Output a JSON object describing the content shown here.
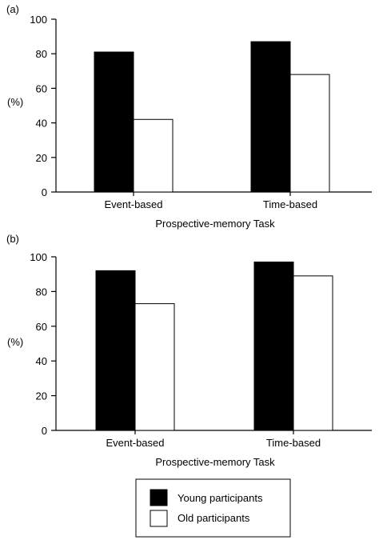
{
  "chart_data": [
    {
      "type": "bar",
      "panel_label": "(a)",
      "categories": [
        "Event-based",
        "Time-based"
      ],
      "series": [
        {
          "name": "Young participants",
          "values": [
            81,
            87
          ]
        },
        {
          "name": "Old participants",
          "values": [
            42,
            68
          ]
        }
      ],
      "xlabel": "Prospective-memory Task",
      "ylabel": "(%)",
      "ylim": [
        0,
        100
      ],
      "yticks": [
        0,
        20,
        40,
        60,
        80,
        100
      ],
      "grid": false
    },
    {
      "type": "bar",
      "panel_label": "(b)",
      "categories": [
        "Event-based",
        "Time-based"
      ],
      "series": [
        {
          "name": "Young participants",
          "values": [
            92,
            97
          ]
        },
        {
          "name": "Old participants",
          "values": [
            73,
            89
          ]
        }
      ],
      "xlabel": "Prospective-memory Task",
      "ylabel": "(%)",
      "ylim": [
        0,
        100
      ],
      "yticks": [
        0,
        20,
        40,
        60,
        80,
        100
      ],
      "grid": false
    }
  ],
  "legend": {
    "placement": "bottom-center",
    "items": [
      {
        "label": "Young participants",
        "fill": "#000000"
      },
      {
        "label": "Old participants",
        "fill": "#ffffff"
      }
    ]
  },
  "colors": {
    "young": "#000000",
    "old": "#ffffff",
    "axis": "#000000"
  }
}
